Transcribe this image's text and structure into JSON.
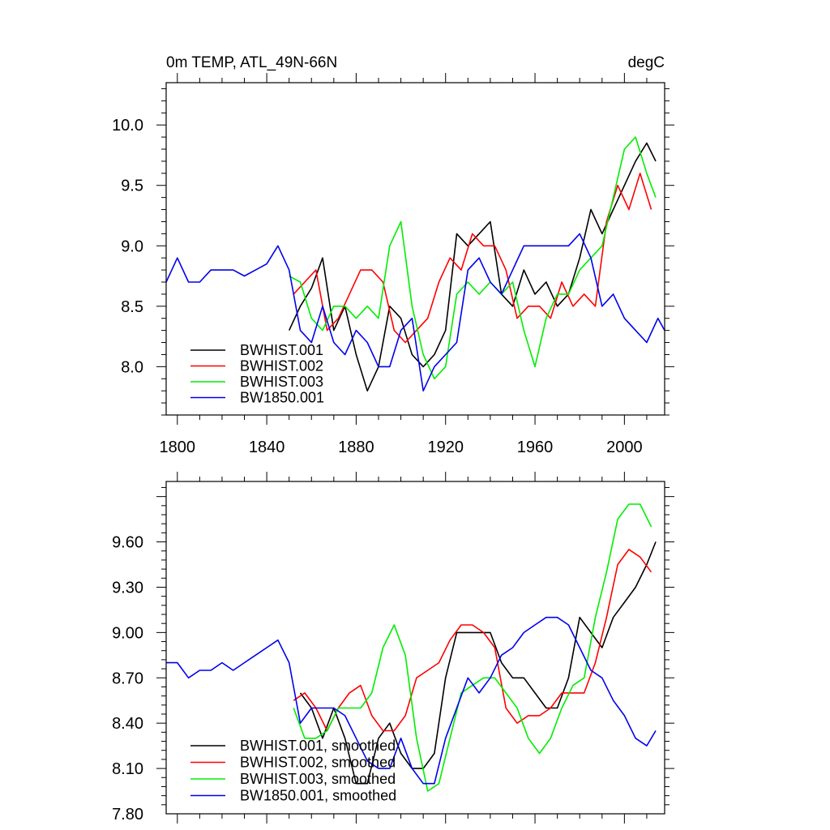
{
  "chart_data": [
    {
      "type": "line",
      "title_left": "0m TEMP, ATL_49N-66N",
      "title_right": "degC",
      "xlim": [
        1795,
        2018
      ],
      "ylim": [
        7.6,
        10.35
      ],
      "xticks": [
        1800,
        1840,
        1880,
        1920,
        1960,
        2000
      ],
      "xtick_labels": [
        "1800",
        "1840",
        "1880",
        "1920",
        "1960",
        "2000"
      ],
      "yticks": [
        8.0,
        8.5,
        9.0,
        9.5,
        10.0
      ],
      "ytick_labels": [
        "8.0",
        "8.5",
        "9.0",
        "9.5",
        "10.0"
      ],
      "grid": false,
      "legend_position": "bottom-left",
      "series": [
        {
          "name": "BWHIST.001",
          "color": "#000000",
          "x": [
            1850,
            1855,
            1860,
            1865,
            1870,
            1875,
            1880,
            1885,
            1890,
            1895,
            1900,
            1905,
            1910,
            1915,
            1920,
            1925,
            1930,
            1935,
            1940,
            1945,
            1950,
            1955,
            1960,
            1965,
            1970,
            1975,
            1980,
            1985,
            1990,
            1995,
            2000,
            2005,
            2010,
            2014
          ],
          "y": [
            8.3,
            8.5,
            8.65,
            8.9,
            8.3,
            8.5,
            8.1,
            7.8,
            8.0,
            8.5,
            8.4,
            8.1,
            8.0,
            8.1,
            8.3,
            9.1,
            9.0,
            9.1,
            9.2,
            8.6,
            8.5,
            8.8,
            8.6,
            8.7,
            8.5,
            8.6,
            8.9,
            9.3,
            9.1,
            9.3,
            9.5,
            9.7,
            9.85,
            9.7
          ]
        },
        {
          "name": "BWHIST.002",
          "color": "#ff0000",
          "x": [
            1852,
            1857,
            1862,
            1867,
            1872,
            1877,
            1882,
            1887,
            1892,
            1897,
            1902,
            1907,
            1912,
            1917,
            1922,
            1927,
            1932,
            1937,
            1942,
            1947,
            1952,
            1957,
            1962,
            1967,
            1972,
            1977,
            1982,
            1987,
            1992,
            1997,
            2002,
            2007,
            2012
          ],
          "y": [
            8.6,
            8.7,
            8.8,
            8.3,
            8.4,
            8.6,
            8.8,
            8.8,
            8.7,
            8.3,
            8.2,
            8.3,
            8.4,
            8.7,
            8.9,
            8.8,
            9.1,
            9.0,
            9.0,
            8.8,
            8.4,
            8.5,
            8.5,
            8.4,
            8.7,
            8.5,
            8.6,
            8.5,
            9.2,
            9.5,
            9.3,
            9.6,
            9.3
          ]
        },
        {
          "name": "BWHIST.003",
          "color": "#00ee00",
          "x": [
            1850,
            1855,
            1860,
            1865,
            1870,
            1875,
            1880,
            1885,
            1890,
            1895,
            1900,
            1905,
            1910,
            1915,
            1920,
            1925,
            1930,
            1935,
            1940,
            1945,
            1950,
            1955,
            1960,
            1965,
            1970,
            1975,
            1980,
            1985,
            1990,
            1995,
            2000,
            2005,
            2010,
            2014
          ],
          "y": [
            8.75,
            8.7,
            8.4,
            8.3,
            8.5,
            8.5,
            8.4,
            8.5,
            8.4,
            9.0,
            9.2,
            8.5,
            8.1,
            7.9,
            8.0,
            8.6,
            8.7,
            8.6,
            8.7,
            8.6,
            8.7,
            8.3,
            8.0,
            8.4,
            8.6,
            8.6,
            8.8,
            8.9,
            9.0,
            9.4,
            9.8,
            9.9,
            9.6,
            9.4
          ]
        },
        {
          "name": "BW1850.001",
          "color": "#0000ee",
          "x": [
            1795,
            1800,
            1805,
            1810,
            1815,
            1820,
            1825,
            1830,
            1835,
            1840,
            1845,
            1850,
            1855,
            1860,
            1865,
            1870,
            1875,
            1880,
            1885,
            1890,
            1895,
            1900,
            1905,
            1910,
            1915,
            1920,
            1925,
            1930,
            1935,
            1940,
            1945,
            1950,
            1955,
            1960,
            1965,
            1970,
            1975,
            1980,
            1985,
            1990,
            1995,
            2000,
            2005,
            2010,
            2015,
            2018
          ],
          "y": [
            8.7,
            8.9,
            8.7,
            8.7,
            8.8,
            8.8,
            8.8,
            8.75,
            8.8,
            8.85,
            9.0,
            8.8,
            8.3,
            8.2,
            8.5,
            8.2,
            8.1,
            8.3,
            8.2,
            8.0,
            8.0,
            8.3,
            8.4,
            7.8,
            8.0,
            8.1,
            8.2,
            8.8,
            8.9,
            8.7,
            8.6,
            8.8,
            9.0,
            9.0,
            9.0,
            9.0,
            9.0,
            9.1,
            8.9,
            8.5,
            8.6,
            8.4,
            8.3,
            8.2,
            8.4,
            8.3
          ]
        }
      ]
    },
    {
      "type": "line",
      "title_left": "",
      "title_right": "",
      "xlim": [
        1795,
        2018
      ],
      "ylim": [
        7.8,
        10.0
      ],
      "xticks": [
        1800,
        1840,
        1880,
        1920,
        1960,
        2000
      ],
      "xtick_labels": [],
      "yticks": [
        7.8,
        8.1,
        8.4,
        8.7,
        9.0,
        9.3,
        9.6
      ],
      "ytick_labels": [
        "7.80",
        "8.10",
        "8.40",
        "8.70",
        "9.00",
        "9.30",
        "9.60"
      ],
      "grid": false,
      "legend_position": "bottom-left",
      "series": [
        {
          "name": "BWHIST.001, smoothed",
          "color": "#000000",
          "x": [
            1855,
            1860,
            1865,
            1870,
            1875,
            1880,
            1885,
            1890,
            1895,
            1900,
            1905,
            1910,
            1915,
            1920,
            1925,
            1930,
            1935,
            1940,
            1945,
            1950,
            1955,
            1960,
            1965,
            1970,
            1975,
            1980,
            1985,
            1990,
            1995,
            2000,
            2005,
            2010,
            2014
          ],
          "y": [
            8.6,
            8.5,
            8.3,
            8.5,
            8.3,
            8.0,
            8.0,
            8.3,
            8.4,
            8.2,
            8.1,
            8.1,
            8.2,
            8.7,
            9.0,
            9.0,
            9.0,
            9.0,
            8.8,
            8.7,
            8.7,
            8.6,
            8.5,
            8.5,
            8.7,
            9.1,
            9.0,
            8.9,
            9.1,
            9.2,
            9.3,
            9.45,
            9.6
          ]
        },
        {
          "name": "BWHIST.002, smoothed",
          "color": "#ff0000",
          "x": [
            1852,
            1857,
            1862,
            1867,
            1872,
            1877,
            1882,
            1887,
            1892,
            1897,
            1902,
            1907,
            1912,
            1917,
            1922,
            1927,
            1932,
            1937,
            1942,
            1947,
            1952,
            1957,
            1962,
            1967,
            1972,
            1977,
            1982,
            1987,
            1992,
            1997,
            2002,
            2007,
            2012
          ],
          "y": [
            8.55,
            8.6,
            8.5,
            8.35,
            8.5,
            8.6,
            8.65,
            8.45,
            8.35,
            8.35,
            8.45,
            8.7,
            8.75,
            8.8,
            8.95,
            9.05,
            9.05,
            9.0,
            8.9,
            8.5,
            8.4,
            8.45,
            8.45,
            8.5,
            8.6,
            8.6,
            8.6,
            8.8,
            9.1,
            9.45,
            9.55,
            9.5,
            9.4
          ]
        },
        {
          "name": "BWHIST.003, smoothed",
          "color": "#00ee00",
          "x": [
            1852,
            1857,
            1862,
            1867,
            1872,
            1877,
            1882,
            1887,
            1892,
            1897,
            1902,
            1907,
            1912,
            1917,
            1922,
            1927,
            1932,
            1937,
            1942,
            1947,
            1952,
            1957,
            1962,
            1967,
            1972,
            1977,
            1982,
            1987,
            1992,
            1997,
            2002,
            2007,
            2012
          ],
          "y": [
            8.5,
            8.3,
            8.3,
            8.35,
            8.5,
            8.5,
            8.5,
            8.6,
            8.9,
            9.05,
            8.85,
            8.3,
            7.95,
            8.0,
            8.3,
            8.6,
            8.65,
            8.7,
            8.7,
            8.6,
            8.5,
            8.3,
            8.2,
            8.3,
            8.5,
            8.65,
            8.7,
            9.1,
            9.4,
            9.75,
            9.85,
            9.85,
            9.7
          ]
        },
        {
          "name": "BW1850.001, smoothed",
          "color": "#0000ee",
          "x": [
            1795,
            1800,
            1805,
            1810,
            1815,
            1820,
            1825,
            1830,
            1835,
            1840,
            1845,
            1850,
            1855,
            1860,
            1865,
            1870,
            1875,
            1880,
            1885,
            1890,
            1895,
            1900,
            1905,
            1910,
            1915,
            1920,
            1925,
            1930,
            1935,
            1940,
            1945,
            1950,
            1955,
            1960,
            1965,
            1970,
            1975,
            1980,
            1985,
            1990,
            1995,
            2000,
            2005,
            2010,
            2014
          ],
          "y": [
            8.8,
            8.8,
            8.7,
            8.75,
            8.75,
            8.8,
            8.75,
            8.8,
            8.85,
            8.9,
            8.95,
            8.8,
            8.4,
            8.5,
            8.5,
            8.5,
            8.45,
            8.3,
            8.15,
            8.1,
            8.1,
            8.3,
            8.1,
            8.0,
            8.0,
            8.3,
            8.5,
            8.7,
            8.6,
            8.7,
            8.85,
            8.9,
            9.0,
            9.05,
            9.1,
            9.1,
            9.05,
            8.9,
            8.75,
            8.7,
            8.55,
            8.45,
            8.3,
            8.25,
            8.35
          ]
        }
      ]
    }
  ]
}
